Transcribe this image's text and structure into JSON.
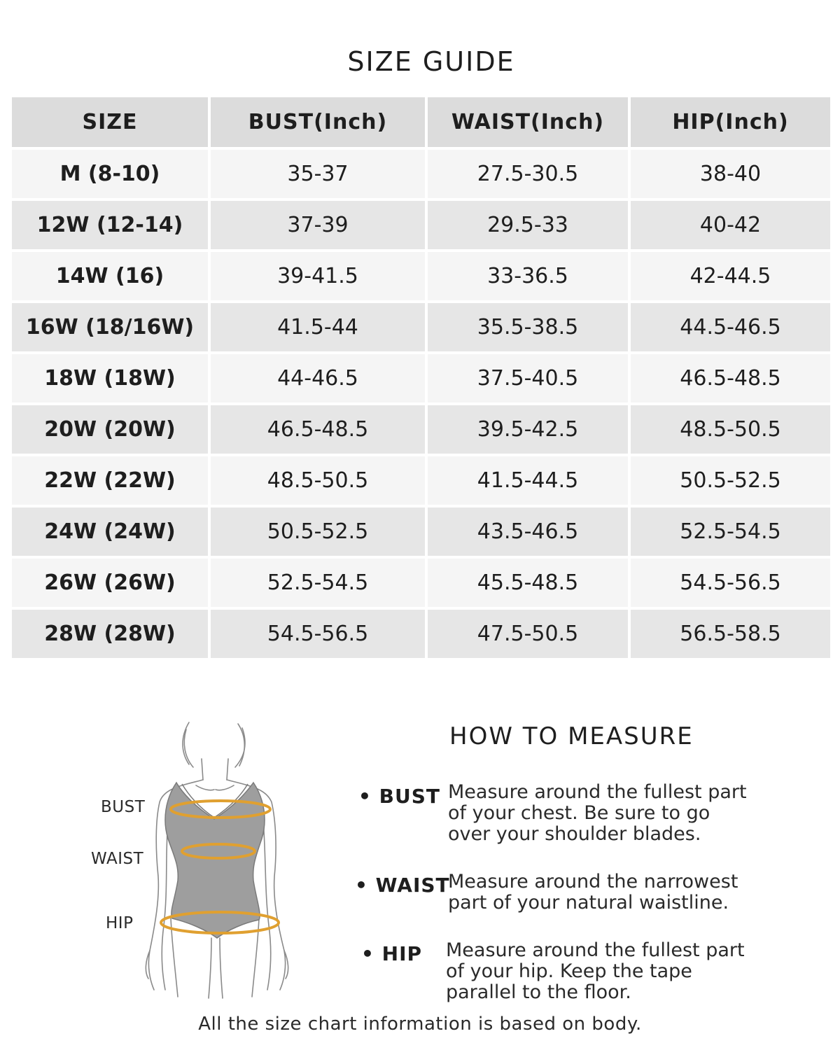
{
  "title": "SIZE GUIDE",
  "table": {
    "headers": [
      "SIZE",
      "BUST(Inch)",
      "WAIST(Inch)",
      "HIP(Inch)"
    ],
    "rows": [
      [
        "M (8-10)",
        "35-37",
        "27.5-30.5",
        "38-40"
      ],
      [
        "12W (12-14)",
        "37-39",
        "29.5-33",
        "40-42"
      ],
      [
        "14W (16)",
        "39-41.5",
        "33-36.5",
        "42-44.5"
      ],
      [
        "16W (18/16W)",
        "41.5-44",
        "35.5-38.5",
        "44.5-46.5"
      ],
      [
        "18W (18W)",
        "44-46.5",
        "37.5-40.5",
        "46.5-48.5"
      ],
      [
        "20W (20W)",
        "46.5-48.5",
        "39.5-42.5",
        "48.5-50.5"
      ],
      [
        "22W (22W)",
        "48.5-50.5",
        "41.5-44.5",
        "50.5-52.5"
      ],
      [
        "24W (24W)",
        "50.5-52.5",
        "43.5-46.5",
        "52.5-54.5"
      ],
      [
        "26W (26W)",
        "52.5-54.5",
        "45.5-48.5",
        "54.5-56.5"
      ],
      [
        "28W (28W)",
        "54.5-56.5",
        "47.5-50.5",
        "56.5-58.5"
      ]
    ]
  },
  "figure": {
    "labels": {
      "bust": "BUST",
      "waist": "WAIST",
      "hip": "HIP"
    },
    "tape_color": "#e0a030",
    "body_color": "#9e9e9e"
  },
  "how_to": {
    "title": "HOW TO MEASURE",
    "items": [
      {
        "label": "• BUST",
        "lines": [
          "Measure around the fullest part",
          "of your chest. Be sure to go",
          "over your shoulder blades."
        ]
      },
      {
        "label": "• WAIST",
        "lines": [
          "Measure around the narrowest",
          "part of your natural waistline."
        ]
      },
      {
        "label": "• HIP",
        "lines": [
          "Measure around the fullest part",
          "of your hip. Keep the tape",
          "parallel to the floor."
        ]
      }
    ]
  },
  "footnote": "All the size chart information is based on body."
}
